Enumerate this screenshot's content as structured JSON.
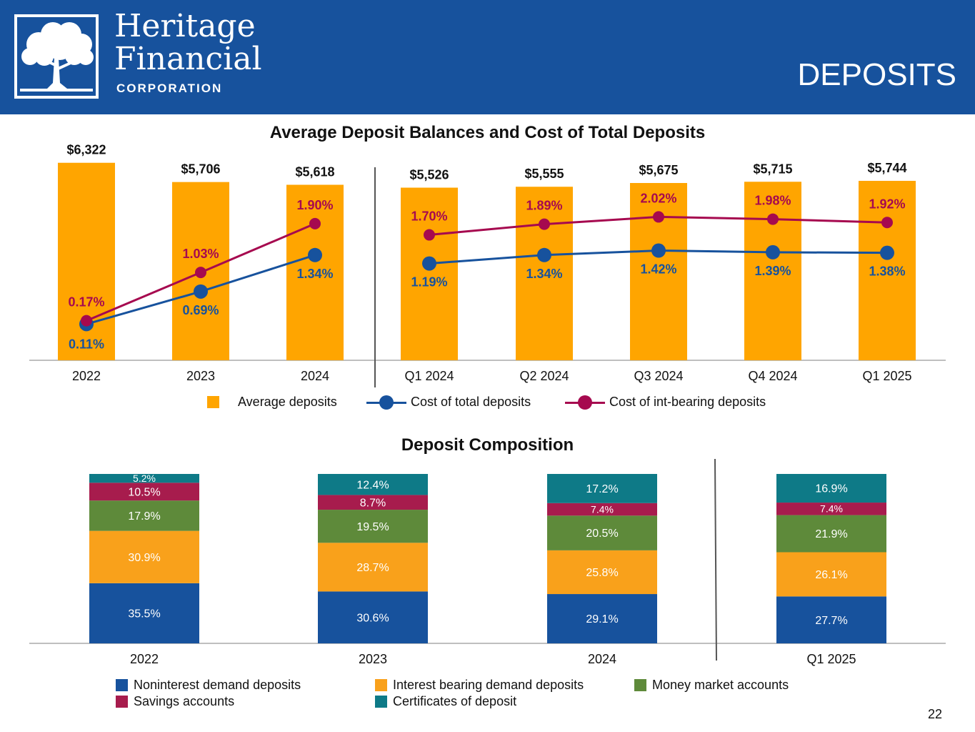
{
  "header": {
    "logo_line1": "Heritage",
    "logo_line2": "Financial",
    "logo_line3": "CORPORATION",
    "title": "DEPOSITS",
    "background_color": "#17529d"
  },
  "page_number": "22",
  "chart_data": [
    {
      "type": "bar",
      "title": "Average Deposit Balances and Cost of Total Deposits",
      "categories": [
        "2022",
        "2023",
        "2024",
        "Q1 2024",
        "Q2 2024",
        "Q3 2024",
        "Q4 2024",
        "Q1 2025"
      ],
      "series": [
        {
          "name": "Average deposits",
          "kind": "bar",
          "color": "#ffa500",
          "values": [
            6322,
            5706,
            5618,
            5526,
            5555,
            5675,
            5715,
            5744
          ],
          "labels": [
            "$6,322",
            "$5,706",
            "$5,618",
            "$5,526",
            "$5,555",
            "$5,675",
            "$5,715",
            "$5,744"
          ]
        },
        {
          "name": "Cost of total deposits",
          "kind": "line",
          "color": "#17529d",
          "values": [
            0.11,
            0.69,
            1.34,
            1.19,
            1.34,
            1.42,
            1.39,
            1.38
          ],
          "labels": [
            "0.11%",
            "0.69%",
            "1.34%",
            "1.19%",
            "1.34%",
            "1.42%",
            "1.39%",
            "1.38%"
          ]
        },
        {
          "name": "Cost of int-bearing deposits",
          "kind": "line",
          "color": "#a6094f",
          "values": [
            0.17,
            1.03,
            1.9,
            1.7,
            1.89,
            2.02,
            1.98,
            1.92
          ],
          "labels": [
            "0.17%",
            "1.03%",
            "1.90%",
            "1.70%",
            "1.89%",
            "2.02%",
            "1.98%",
            "1.92%"
          ]
        }
      ],
      "groups": [
        [
          "2022",
          "2023",
          "2024"
        ],
        [
          "Q1 2024",
          "Q2 2024",
          "Q3 2024",
          "Q4 2024",
          "Q1 2025"
        ]
      ],
      "legend": [
        "Average deposits",
        "Cost of total deposits",
        "Cost of int-bearing deposits"
      ],
      "legend_position": "bottom"
    },
    {
      "type": "bar",
      "stacked": true,
      "title": "Deposit Composition",
      "categories": [
        "2022",
        "2023",
        "2024",
        "Q1 2025"
      ],
      "series": [
        {
          "name": "Noninterest demand deposits",
          "color": "#17529d",
          "values": [
            35.5,
            30.6,
            29.1,
            27.7
          ],
          "labels": [
            "35.5%",
            "30.6%",
            "29.1%",
            "27.7%"
          ]
        },
        {
          "name": "Interest bearing demand deposits",
          "color": "#f9a11b",
          "values": [
            30.9,
            28.7,
            25.8,
            26.1
          ],
          "labels": [
            "30.9%",
            "28.7%",
            "25.8%",
            "26.1%"
          ]
        },
        {
          "name": "Money market accounts",
          "color": "#5e8a3a",
          "values": [
            17.9,
            19.5,
            20.5,
            21.9
          ],
          "labels": [
            "17.9%",
            "19.5%",
            "20.5%",
            "21.9%"
          ]
        },
        {
          "name": "Savings accounts",
          "color": "#a71c4d",
          "values": [
            10.5,
            8.7,
            7.4,
            7.4
          ],
          "labels": [
            "10.5%",
            "8.7%",
            "7.4%",
            "7.4%"
          ]
        },
        {
          "name": "Certificates of deposit",
          "color": "#0e7a87",
          "values": [
            5.2,
            12.4,
            17.2,
            16.9
          ],
          "labels": [
            "5.2%",
            "12.4%",
            "17.2%",
            "16.9%"
          ]
        }
      ],
      "legend_position": "bottom"
    }
  ]
}
